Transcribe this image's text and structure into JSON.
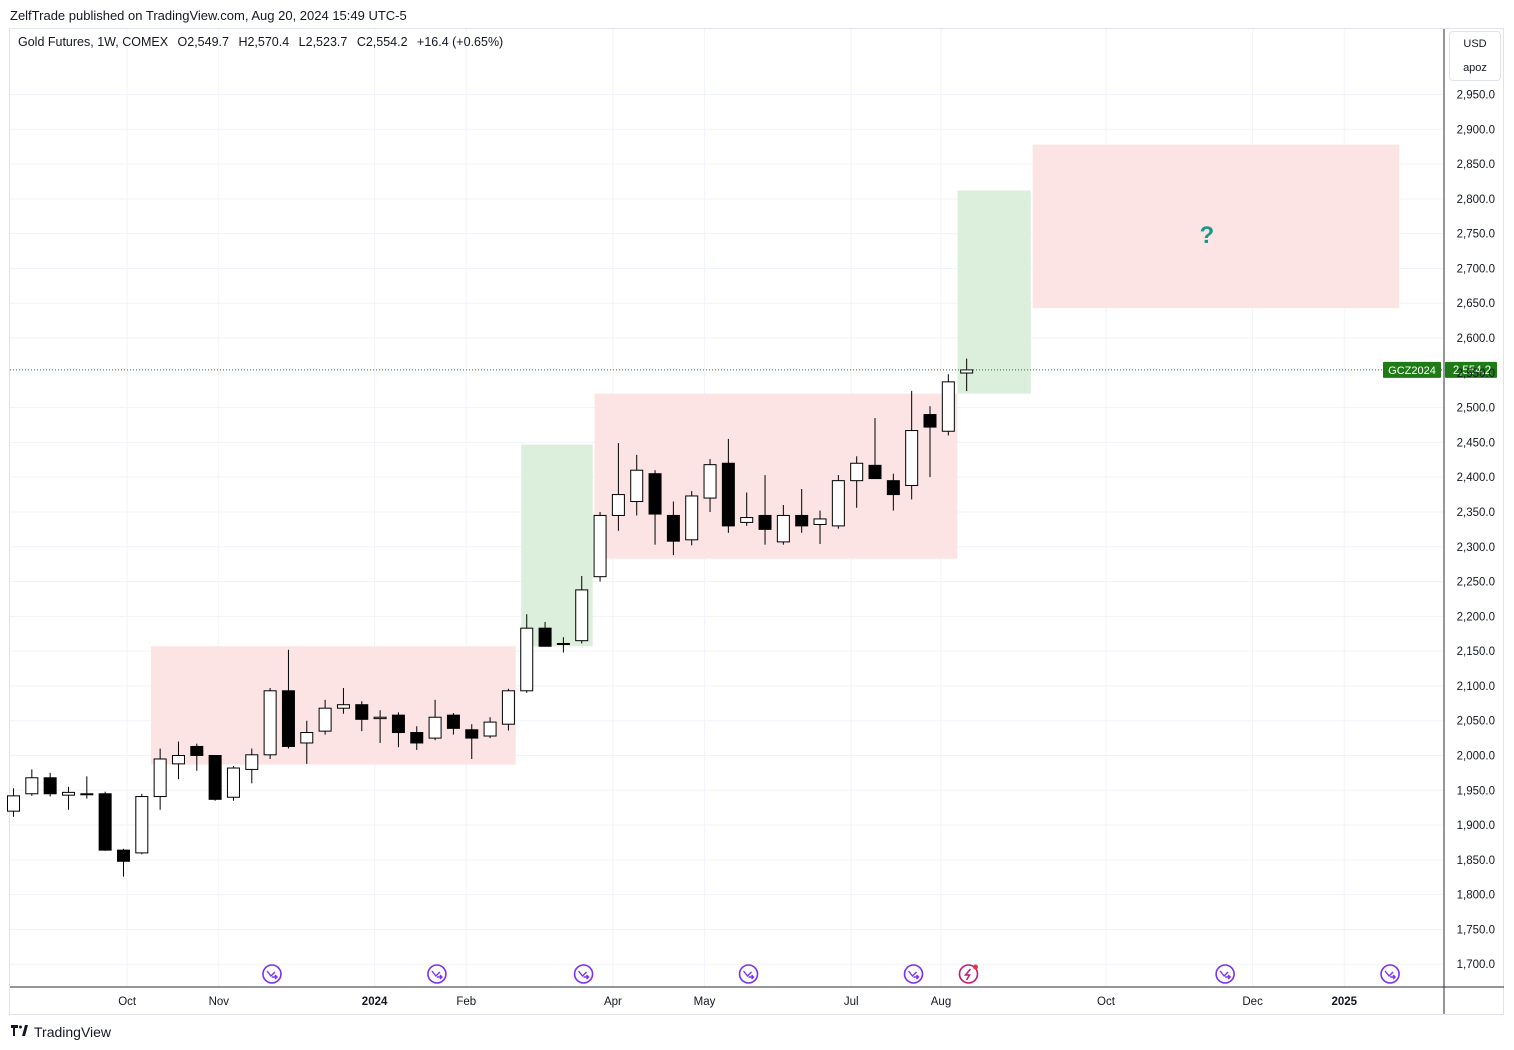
{
  "header": {
    "published_text": "ZelfTrade published on TradingView.com, Aug 20, 2024 15:49 UTC-5"
  },
  "legend": {
    "symbol": "Gold Futures, 1W, COMEX",
    "open": "O2,549.7",
    "high": "H2,570.4",
    "low": "L2,523.7",
    "close": "C2,554.2",
    "change": "+16.4 (+0.65%)"
  },
  "unit_box": {
    "currency": "USD",
    "label2": "apoz"
  },
  "price_tag": {
    "symbol": "GCZ2024",
    "price": "2,554.2"
  },
  "footer": {
    "brand": "TradingView"
  },
  "annotation": {
    "text": "?"
  },
  "colors": {
    "up_body": "#ffffff",
    "down_body": "#000000",
    "wick": "#000000",
    "red_zone": "#fce4e4",
    "green_zone": "#dcefdc",
    "price_tag_bg": "#1e7b16",
    "annotation": "#159a86",
    "event_icon": "#7b2ff0"
  },
  "chart_data": {
    "type": "candlestick",
    "title": "Gold Futures, 1W, COMEX",
    "y_axis": {
      "ticks": [
        "1,700.0",
        "1,750.0",
        "1,800.0",
        "1,850.0",
        "1,900.0",
        "1,950.0",
        "2,000.0",
        "2,050.0",
        "2,100.0",
        "2,150.0",
        "2,200.0",
        "2,250.0",
        "2,300.0",
        "2,350.0",
        "2,400.0",
        "2,450.0",
        "2,500.0",
        "2,550.0",
        "2,600.0",
        "2,650.0",
        "2,700.0",
        "2,750.0",
        "2,800.0",
        "2,850.0",
        "2,900.0",
        "2,950.0"
      ],
      "tick_values": [
        1700,
        1750,
        1800,
        1850,
        1900,
        1950,
        2000,
        2050,
        2100,
        2150,
        2200,
        2250,
        2300,
        2350,
        2400,
        2450,
        2500,
        2550,
        2600,
        2650,
        2700,
        2750,
        2800,
        2850,
        2900,
        2950
      ],
      "range": [
        1665,
        3010
      ]
    },
    "x_axis": {
      "labels": [
        {
          "text": "Oct",
          "bold": false,
          "bar": 6.2
        },
        {
          "text": "Nov",
          "bold": false,
          "bar": 11.2
        },
        {
          "text": "2024",
          "bold": true,
          "bar": 19.7
        },
        {
          "text": "Feb",
          "bold": false,
          "bar": 24.7
        },
        {
          "text": "Apr",
          "bold": false,
          "bar": 32.7
        },
        {
          "text": "May",
          "bold": false,
          "bar": 37.7
        },
        {
          "text": "Jul",
          "bold": false,
          "bar": 45.7
        },
        {
          "text": "Aug",
          "bold": false,
          "bar": 50.6
        },
        {
          "text": "Oct",
          "bold": false,
          "bar": 59.6
        },
        {
          "text": "Dec",
          "bold": false,
          "bar": 67.6
        },
        {
          "text": "2025",
          "bold": true,
          "bar": 72.6
        }
      ]
    },
    "candles": [
      {
        "o": 1920,
        "h": 1953,
        "l": 1912,
        "c": 1942
      },
      {
        "o": 1945,
        "h": 1980,
        "l": 1942,
        "c": 1968
      },
      {
        "o": 1968,
        "h": 1975,
        "l": 1941,
        "c": 1945
      },
      {
        "o": 1943,
        "h": 1955,
        "l": 1922,
        "c": 1947
      },
      {
        "o": 1945,
        "h": 1970,
        "l": 1938,
        "c": 1945
      },
      {
        "o": 1945,
        "h": 1948,
        "l": 1863,
        "c": 1864
      },
      {
        "o": 1864,
        "h": 1866,
        "l": 1826,
        "c": 1848
      },
      {
        "o": 1860,
        "h": 1945,
        "l": 1858,
        "c": 1941
      },
      {
        "o": 1941,
        "h": 2010,
        "l": 1922,
        "c": 1995
      },
      {
        "o": 1988,
        "h": 2020,
        "l": 1966,
        "c": 2000
      },
      {
        "o": 2013,
        "h": 2017,
        "l": 1978,
        "c": 2000
      },
      {
        "o": 2000,
        "h": 2000,
        "l": 1935,
        "c": 1937
      },
      {
        "o": 1940,
        "h": 1985,
        "l": 1935,
        "c": 1982
      },
      {
        "o": 1980,
        "h": 2010,
        "l": 1960,
        "c": 2001
      },
      {
        "o": 2001,
        "h": 2097,
        "l": 1995,
        "c": 2093
      },
      {
        "o": 2093,
        "h": 2152,
        "l": 2010,
        "c": 2013
      },
      {
        "o": 2018,
        "h": 2050,
        "l": 1988,
        "c": 2033
      },
      {
        "o": 2035,
        "h": 2080,
        "l": 2030,
        "c": 2068
      },
      {
        "o": 2068,
        "h": 2097,
        "l": 2060,
        "c": 2073
      },
      {
        "o": 2073,
        "h": 2078,
        "l": 2035,
        "c": 2052
      },
      {
        "o": 2053,
        "h": 2065,
        "l": 2018,
        "c": 2055
      },
      {
        "o": 2058,
        "h": 2062,
        "l": 2012,
        "c": 2033
      },
      {
        "o": 2033,
        "h": 2042,
        "l": 2008,
        "c": 2018
      },
      {
        "o": 2025,
        "h": 2080,
        "l": 2022,
        "c": 2055
      },
      {
        "o": 2058,
        "h": 2061,
        "l": 2030,
        "c": 2039
      },
      {
        "o": 2037,
        "h": 2045,
        "l": 1995,
        "c": 2025
      },
      {
        "o": 2028,
        "h": 2055,
        "l": 2025,
        "c": 2048
      },
      {
        "o": 2045,
        "h": 2096,
        "l": 2036,
        "c": 2093
      },
      {
        "o": 2093,
        "h": 2203,
        "l": 2090,
        "c": 2183
      },
      {
        "o": 2183,
        "h": 2192,
        "l": 2159,
        "c": 2157
      },
      {
        "o": 2160,
        "h": 2170,
        "l": 2148,
        "c": 2161
      },
      {
        "o": 2165,
        "h": 2258,
        "l": 2161,
        "c": 2238
      },
      {
        "o": 2257,
        "h": 2350,
        "l": 2250,
        "c": 2345
      },
      {
        "o": 2345,
        "h": 2449,
        "l": 2323,
        "c": 2375
      },
      {
        "o": 2365,
        "h": 2432,
        "l": 2345,
        "c": 2410
      },
      {
        "o": 2405,
        "h": 2410,
        "l": 2303,
        "c": 2347
      },
      {
        "o": 2345,
        "h": 2365,
        "l": 2288,
        "c": 2308
      },
      {
        "o": 2310,
        "h": 2380,
        "l": 2302,
        "c": 2373
      },
      {
        "o": 2370,
        "h": 2426,
        "l": 2350,
        "c": 2418
      },
      {
        "o": 2420,
        "h": 2455,
        "l": 2320,
        "c": 2330
      },
      {
        "o": 2335,
        "h": 2378,
        "l": 2330,
        "c": 2342
      },
      {
        "o": 2345,
        "h": 2403,
        "l": 2303,
        "c": 2325
      },
      {
        "o": 2307,
        "h": 2360,
        "l": 2303,
        "c": 2345
      },
      {
        "o": 2345,
        "h": 2383,
        "l": 2320,
        "c": 2330
      },
      {
        "o": 2332,
        "h": 2352,
        "l": 2304,
        "c": 2340
      },
      {
        "o": 2330,
        "h": 2403,
        "l": 2326,
        "c": 2395
      },
      {
        "o": 2395,
        "h": 2430,
        "l": 2356,
        "c": 2420
      },
      {
        "o": 2417,
        "h": 2485,
        "l": 2398,
        "c": 2398
      },
      {
        "o": 2395,
        "h": 2405,
        "l": 2352,
        "c": 2375
      },
      {
        "o": 2388,
        "h": 2524,
        "l": 2368,
        "c": 2467
      },
      {
        "o": 2490,
        "h": 2502,
        "l": 2400,
        "c": 2472
      },
      {
        "o": 2466,
        "h": 2548,
        "l": 2460,
        "c": 2537
      },
      {
        "o": 2549.7,
        "h": 2570.4,
        "l": 2523.7,
        "c": 2554.2
      }
    ],
    "zones": [
      {
        "kind": "consolidation",
        "color": "red",
        "from_bar": 7.5,
        "to_bar": 27.4,
        "low": 1987,
        "high": 2157
      },
      {
        "kind": "move",
        "color": "green",
        "from_bar": 27.7,
        "to_bar": 31.6,
        "low": 2157,
        "high": 2447
      },
      {
        "kind": "consolidation",
        "color": "red",
        "from_bar": 31.7,
        "to_bar": 51.5,
        "low": 2283,
        "high": 2520
      },
      {
        "kind": "move",
        "color": "green",
        "from_bar": 51.5,
        "to_bar": 55.5,
        "low": 2520,
        "high": 2812
      },
      {
        "kind": "projection",
        "color": "red",
        "from_bar": 55.6,
        "to_bar": 75.6,
        "low": 2643,
        "high": 2878
      }
    ],
    "annotation": {
      "text": "?",
      "bar": 65.1,
      "price": 2748
    },
    "last_price": 2554.2,
    "event_markers": [
      {
        "bar": 14.1,
        "type": "dividend"
      },
      {
        "bar": 23.1,
        "type": "dividend"
      },
      {
        "bar": 31.1,
        "type": "dividend"
      },
      {
        "bar": 40.1,
        "type": "dividend"
      },
      {
        "bar": 49.1,
        "type": "dividend"
      },
      {
        "bar": 52.1,
        "type": "split"
      },
      {
        "bar": 66.1,
        "type": "dividend"
      },
      {
        "bar": 75.1,
        "type": "dividend"
      }
    ]
  }
}
